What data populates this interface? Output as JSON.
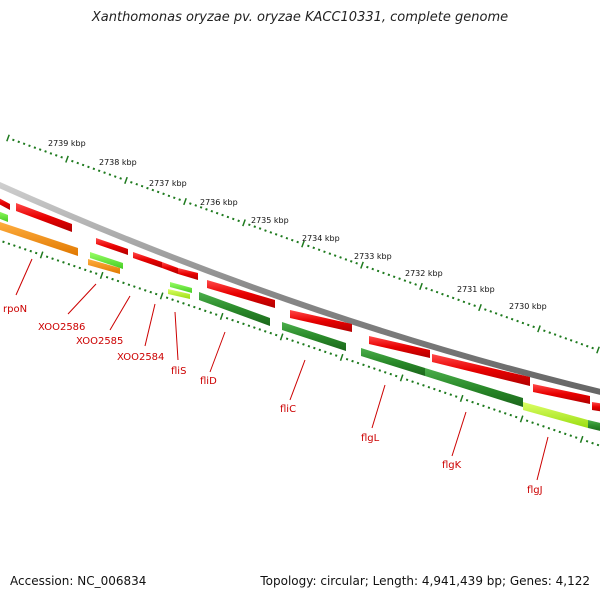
{
  "title": "Xanthomonas oryzae pv. oryzae KACC10331, complete genome",
  "footer": {
    "accession": "Accession: NC_006834",
    "summary": "Topology: circular; Length: 4,941,439 bp; Genes: 4,122"
  },
  "scale_labels": [
    "2739 kbp",
    "2738 kbp",
    "2737 kbp",
    "2736 kbp",
    "2735 kbp",
    "2734 kbp",
    "2733 kbp",
    "2732 kbp",
    "2731 kbp",
    "2730 kbp"
  ],
  "gene_labels": [
    "rpoN",
    "XOO2586",
    "XOO2585",
    "XOO2584",
    "fliS",
    "fliD",
    "fliC",
    "flgL",
    "flgK",
    "flgJ"
  ],
  "colors": {
    "forward_gene": "#e80000",
    "cds_green": "#2a8a2a",
    "cds_orange": "#f08a00",
    "cds_lightgreen": "#66dd33",
    "cds_lime": "#aaee22",
    "backbone": "#888888",
    "tick": "#1e7a1e",
    "label": "#cc0000"
  }
}
